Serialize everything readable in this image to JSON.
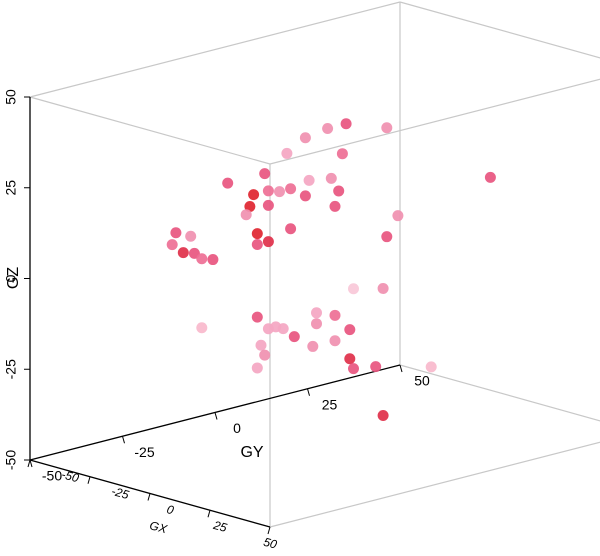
{
  "chart_data": {
    "type": "scatter3d",
    "xlabel": "GX",
    "ylabel": "GY",
    "zlabel": "GZ",
    "xlim": [
      -50,
      50
    ],
    "ylim": [
      -50,
      50
    ],
    "zlim": [
      -50,
      50
    ],
    "xticks": [
      -50,
      -25,
      0,
      25,
      50
    ],
    "yticks": [
      -50,
      -25,
      0,
      25,
      50
    ],
    "zticks": [
      -50,
      -25,
      0,
      25,
      50
    ],
    "series": [
      {
        "x": [
          0,
          0,
          0,
          0,
          0,
          0,
          0,
          0,
          0,
          0,
          0,
          0,
          0,
          0,
          0,
          0,
          0,
          0,
          0,
          0,
          0,
          0,
          0,
          0,
          0,
          0,
          0,
          0,
          0,
          0,
          0,
          0,
          0,
          0,
          0,
          0,
          0,
          0,
          0,
          0,
          0,
          0,
          0,
          0,
          0,
          0,
          0,
          0,
          0,
          0,
          0,
          0,
          0,
          0,
          0,
          0
        ],
        "y": [
          3,
          -2,
          -8,
          14,
          -13,
          2,
          42,
          -29,
          -19,
          -22,
          -18,
          -15,
          -12,
          -8,
          -7,
          -1,
          1,
          0,
          -23,
          -18,
          -24,
          17,
          -43,
          -39,
          -44,
          -41,
          -38,
          -36,
          -33,
          -21,
          -18,
          -21,
          -12,
          14,
          5,
          13,
          -36,
          -21,
          -5,
          0,
          -18,
          -16,
          -14,
          -11,
          -5,
          4,
          -6,
          0,
          -20,
          -19,
          -21,
          4,
          5,
          11,
          26,
          13
        ],
        "z": [
          38,
          38,
          37,
          34,
          34,
          30,
          13,
          30,
          30,
          25,
          25,
          24,
          24,
          21,
          25,
          24,
          20,
          16,
          22,
          21,
          20,
          9,
          20,
          18,
          17,
          14,
          13,
          11,
          10,
          14,
          11,
          11,
          13,
          4,
          -8,
          -10,
          -8,
          -9,
          -12,
          -14,
          -13,
          -13,
          -14,
          -17,
          -15,
          -19,
          -21,
          -21,
          -17,
          -20,
          -23,
          -27,
          -30,
          -31,
          -35,
          -45
        ],
        "colors": [
          "#e8557f",
          "#f090b0",
          "#f090b0",
          "#f090b0",
          "#f4a6c2",
          "#ee6f95",
          "#e8557f",
          "#e8557f",
          "#e8557f",
          "#e02530",
          "#ee6f95",
          "#f090b0",
          "#ee6f95",
          "#e8557f",
          "#f4a6c2",
          "#f090b0",
          "#e8557f",
          "#e8557f",
          "#e02530",
          "#e8557f",
          "#f090b0",
          "#f090b0",
          "#e8557f",
          "#f090b0",
          "#ee6f95",
          "#e0304a",
          "#e8557f",
          "#ee6f95",
          "#e8557f",
          "#e02530",
          "#e0304a",
          "#e8557f",
          "#e8557f",
          "#e8557f",
          "#f8c8d8",
          "#f090b0",
          "#f8b8cc",
          "#e8557f",
          "#f4a6c2",
          "#ee6f95",
          "#f4a6c2",
          "#f4a6c2",
          "#f4a6c2",
          "#e8557f",
          "#f090b0",
          "#e8557f",
          "#f090b0",
          "#f090b0",
          "#f4a6c2",
          "#f090b0",
          "#f4a6c2",
          "#e0304a",
          "#e8557f",
          "#e8557f",
          "#f8b8cc",
          "#e0304a"
        ]
      }
    ]
  }
}
